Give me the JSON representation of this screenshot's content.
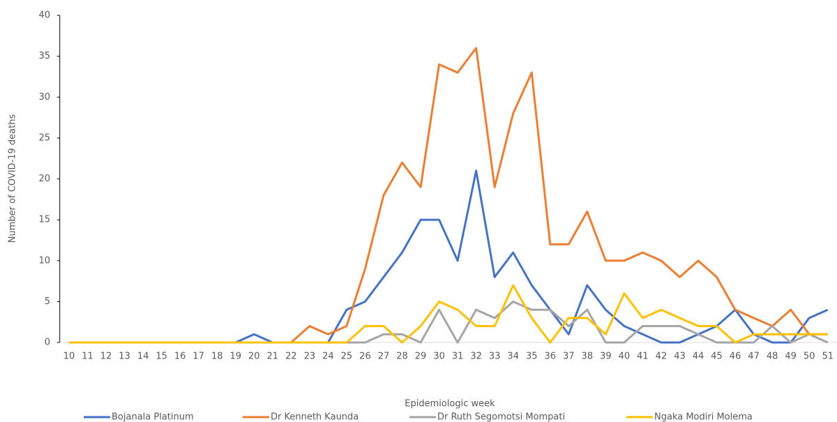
{
  "chart_data": {
    "type": "line",
    "xlabel": "Epidemiologic week",
    "ylabel": "Number of COVID-19 deaths",
    "categories": [
      "10",
      "11",
      "12",
      "13",
      "14",
      "15",
      "16",
      "17",
      "18",
      "19",
      "20",
      "21",
      "22",
      "23",
      "24",
      "25",
      "26",
      "27",
      "28",
      "29",
      "30",
      "31",
      "32",
      "33",
      "34",
      "35",
      "36",
      "37",
      "38",
      "39",
      "40",
      "41",
      "42",
      "43",
      "44",
      "45",
      "46",
      "47",
      "48",
      "49",
      "50",
      "51"
    ],
    "series": [
      {
        "name": "Bojanala Platinum",
        "color": "#4472c4",
        "values": [
          0,
          0,
          0,
          0,
          0,
          0,
          0,
          0,
          0,
          0,
          1,
          0,
          0,
          0,
          0,
          4,
          5,
          8,
          11,
          15,
          15,
          10,
          21,
          8,
          11,
          7,
          4,
          1,
          7,
          4,
          2,
          1,
          0,
          0,
          1,
          2,
          4,
          1,
          0,
          0,
          3,
          4
        ]
      },
      {
        "name": "Dr Kenneth Kaunda",
        "color": "#ed7d31",
        "values": [
          0,
          0,
          0,
          0,
          0,
          0,
          0,
          0,
          0,
          0,
          0,
          0,
          0,
          2,
          1,
          2,
          9,
          18,
          22,
          19,
          34,
          33,
          36,
          19,
          28,
          33,
          12,
          12,
          16,
          10,
          10,
          11,
          10,
          8,
          10,
          8,
          4,
          3,
          2,
          4,
          1,
          1
        ]
      },
      {
        "name": "Dr Ruth Segomotsi Mompati",
        "color": "#a5a5a5",
        "values": [
          0,
          0,
          0,
          0,
          0,
          0,
          0,
          0,
          0,
          0,
          0,
          0,
          0,
          0,
          0,
          0,
          0,
          1,
          1,
          0,
          4,
          0,
          4,
          3,
          5,
          4,
          4,
          2,
          4,
          0,
          0,
          2,
          2,
          2,
          1,
          0,
          0,
          0,
          2,
          0,
          1,
          0
        ]
      },
      {
        "name": "Ngaka Modiri Molema",
        "color": "#ffc000",
        "values": [
          0,
          0,
          0,
          0,
          0,
          0,
          0,
          0,
          0,
          0,
          0,
          0,
          0,
          0,
          0,
          0,
          2,
          2,
          0,
          2,
          5,
          4,
          2,
          2,
          7,
          3,
          0,
          3,
          3,
          1,
          6,
          3,
          4,
          3,
          2,
          2,
          0,
          1,
          1,
          1,
          1,
          1
        ]
      }
    ],
    "ylim": [
      0,
      40
    ],
    "yticks": [
      0,
      5,
      10,
      15,
      20,
      25,
      30,
      35,
      40
    ],
    "legend": "bottom"
  }
}
